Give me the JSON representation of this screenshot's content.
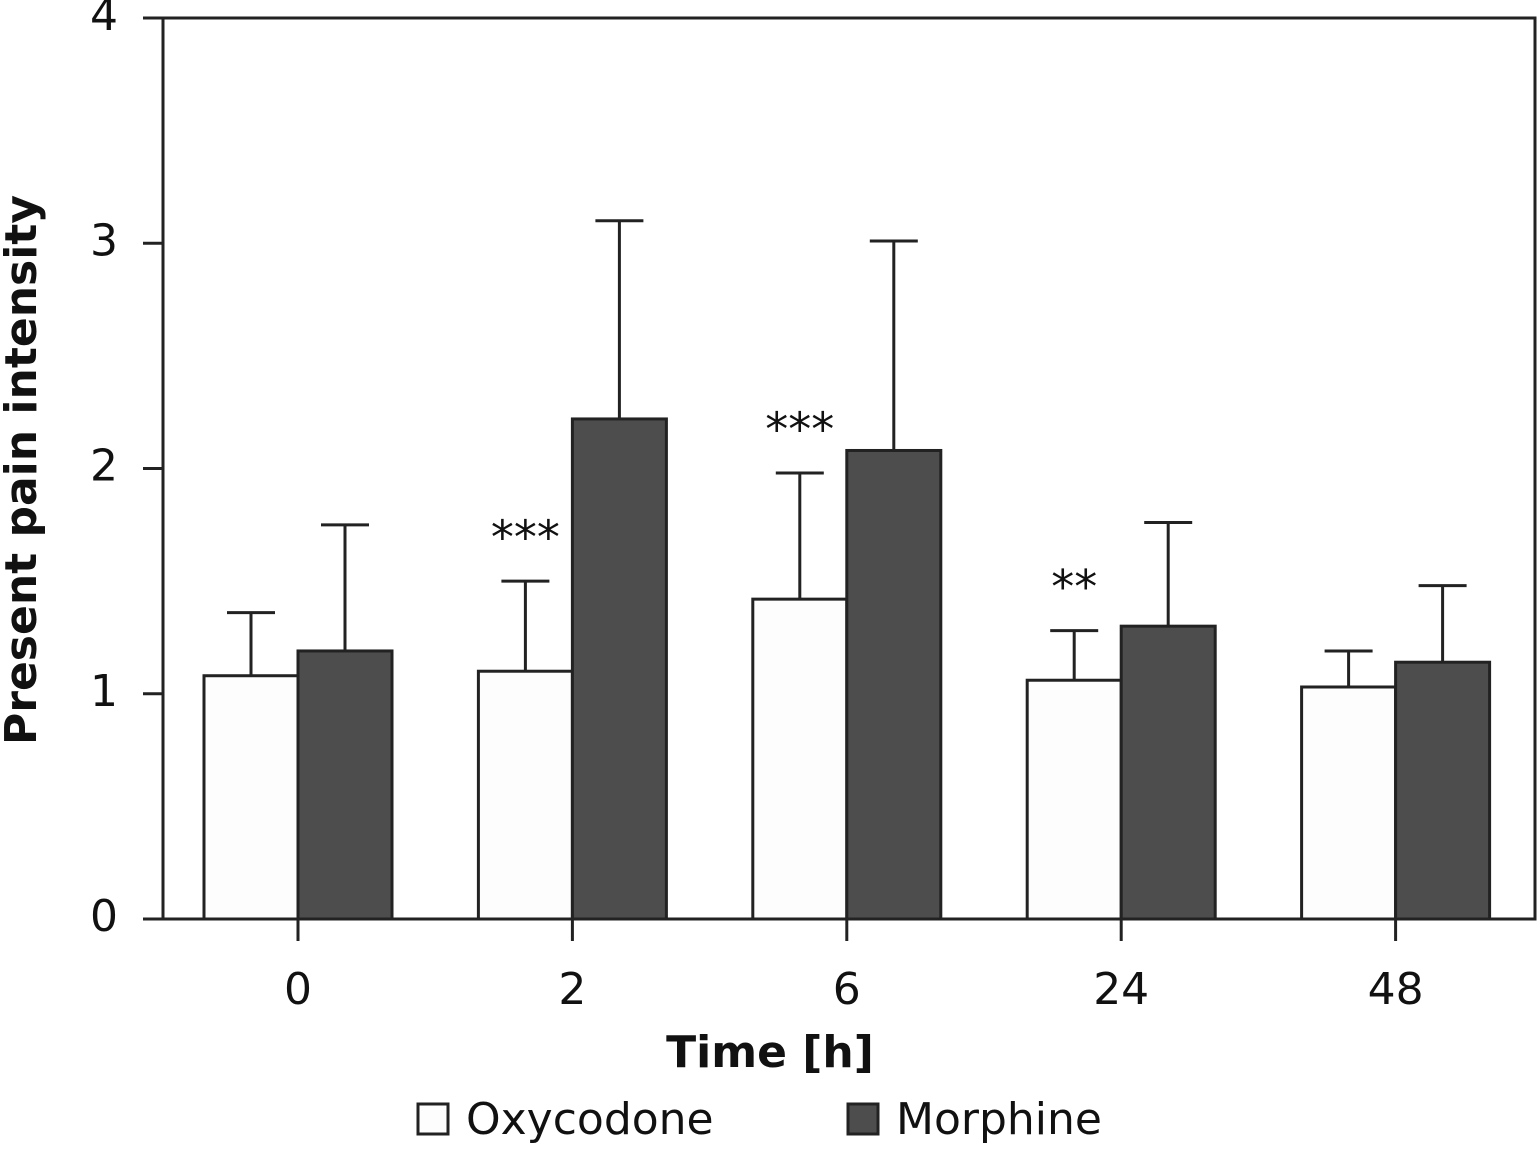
{
  "chart_data": {
    "type": "bar",
    "x_label": "Time [h]",
    "y_label": "Present pain intensity",
    "categories": [
      "0",
      "2",
      "6",
      "24",
      "48"
    ],
    "series": [
      {
        "name": "Oxycodone",
        "color": "#fdfdfd",
        "values": [
          1.08,
          1.1,
          1.42,
          1.06,
          1.03
        ],
        "errors": [
          0.28,
          0.4,
          0.56,
          0.22,
          0.16
        ]
      },
      {
        "name": "Morphine",
        "color": "#4d4d4d",
        "values": [
          1.19,
          2.22,
          2.08,
          1.3,
          1.14
        ],
        "errors": [
          0.56,
          0.88,
          0.93,
          0.46,
          0.34
        ]
      }
    ],
    "annotations": [
      null,
      "***",
      "***",
      "**",
      null
    ],
    "ylim": [
      0,
      4
    ],
    "yticks": [
      0,
      1,
      2,
      3,
      4
    ]
  }
}
